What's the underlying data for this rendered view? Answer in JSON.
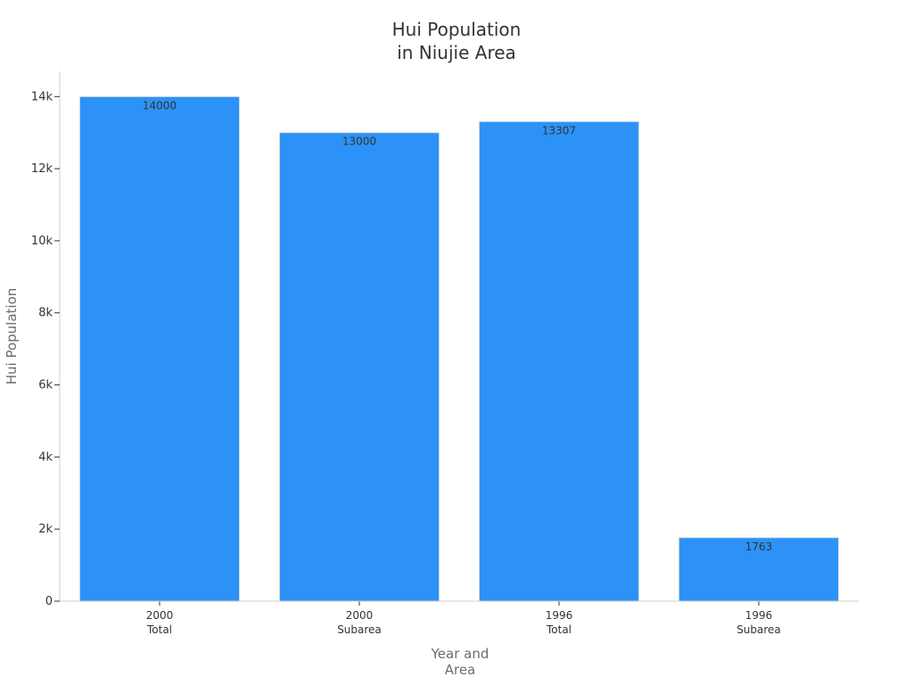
{
  "chart_data": {
    "type": "bar",
    "title": [
      "Hui Population",
      "in Niujie Area"
    ],
    "xlabel": [
      "Year and",
      "Area"
    ],
    "ylabel": "Hui Population",
    "categories": [
      [
        "2000",
        "Total"
      ],
      [
        "2000",
        "Subarea"
      ],
      [
        "1996",
        "Total"
      ],
      [
        "1996",
        "Subarea"
      ]
    ],
    "values": [
      14000,
      13000,
      13307,
      1763
    ],
    "data_labels": [
      "14000",
      "13000",
      "13307",
      "1763"
    ],
    "ylim": [
      0,
      14700
    ],
    "yticks": [
      0,
      2000,
      4000,
      6000,
      8000,
      10000,
      12000,
      14000
    ],
    "ytick_labels": [
      "0",
      "2k",
      "4k",
      "6k",
      "8k",
      "10k",
      "12k",
      "14k"
    ],
    "grid": false,
    "colors": {
      "bar": "#2d92f7",
      "bar_edge": "#e0e0e0"
    }
  }
}
